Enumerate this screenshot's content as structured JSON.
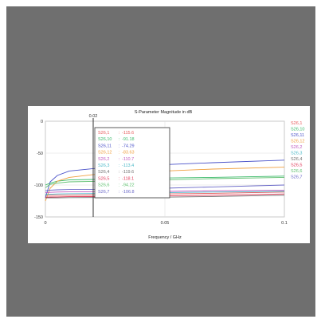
{
  "chart_data": {
    "type": "line",
    "title": "S-Parameter Magnitude in dB",
    "xlabel": "Frequency / GHz",
    "ylabel": "",
    "xlim": [
      0,
      0.1
    ],
    "ylim": [
      -150,
      0
    ],
    "x_ticks": [
      "0",
      "0.05",
      "0.1"
    ],
    "y_ticks": [
      "0",
      "-50",
      "-100",
      "-150"
    ],
    "grid": true,
    "legend_position": "right",
    "marker": {
      "x": 0.02,
      "label": "0.02"
    },
    "x": [
      0,
      0.002,
      0.005,
      0.01,
      0.02,
      0.03,
      0.05,
      0.07,
      0.1
    ],
    "series": [
      {
        "name": "S26,1",
        "color": "#e85a5a",
        "marker_value": "-115.6",
        "values": [
          -116,
          -116,
          -116,
          -116,
          -115.6,
          -115.4,
          -114,
          -113,
          -111
        ]
      },
      {
        "name": "S26,10",
        "color": "#3cba6a",
        "marker_value": "-91.18",
        "values": [
          -100,
          -97,
          -94,
          -92,
          -91.2,
          -90,
          -89,
          -88,
          -86
        ]
      },
      {
        "name": "S26,11",
        "color": "#4a52c9",
        "marker_value": "-74.29",
        "values": [
          -120,
          -95,
          -85,
          -78,
          -74.3,
          -72,
          -68,
          -65,
          -61
        ]
      },
      {
        "name": "S26,12",
        "color": "#f0a040",
        "marker_value": "-83.63",
        "values": [
          -125,
          -105,
          -94,
          -88,
          -83.6,
          -81,
          -78,
          -75,
          -72
        ]
      },
      {
        "name": "S26,2",
        "color": "#c05ac0",
        "marker_value": "-110.7",
        "values": [
          -112,
          -111.5,
          -111,
          -110.8,
          -110.7,
          -110.5,
          -110,
          -109,
          -108
        ]
      },
      {
        "name": "S26,3",
        "color": "#4ab8c8",
        "marker_value": "-113.4",
        "values": [
          -115,
          -114.5,
          -114,
          -113.6,
          -113.4,
          -113,
          -112,
          -111,
          -110
        ]
      },
      {
        "name": "S26,4",
        "color": "#707070",
        "marker_value": "-119.6",
        "values": [
          -120,
          -120,
          -120,
          -119.8,
          -119.6,
          -119.4,
          -119,
          -118,
          -116
        ]
      },
      {
        "name": "S26,5",
        "color": "#e03a5a",
        "marker_value": "-118.1",
        "values": [
          -119,
          -118.8,
          -118.6,
          -118.3,
          -118.1,
          -117.8,
          -117,
          -116,
          -114
        ]
      },
      {
        "name": "S26,6",
        "color": "#5fc070",
        "marker_value": "-94.22",
        "values": [
          -104,
          -99,
          -97,
          -95,
          -94.2,
          -93.5,
          -92,
          -90,
          -88
        ]
      },
      {
        "name": "S26,7",
        "color": "#6a68c8",
        "marker_value": "-106.8",
        "values": [
          -109,
          -108,
          -107.5,
          -107,
          -106.8,
          -106.3,
          -105,
          -103,
          -100
        ]
      }
    ]
  }
}
